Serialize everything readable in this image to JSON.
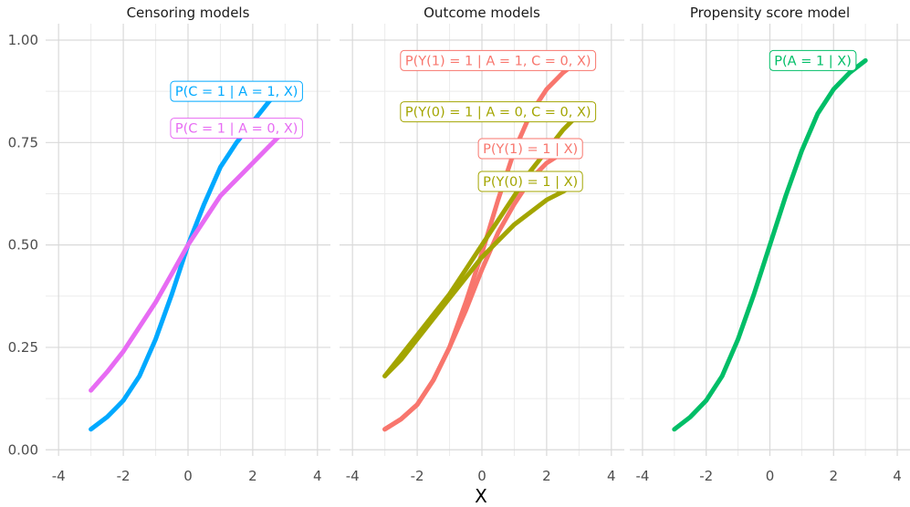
{
  "chart_data": {
    "type": "line",
    "xlabel": "X",
    "ylabel": "",
    "xlim": [
      -4.4,
      4.4
    ],
    "ylim": [
      -0.015,
      1.04
    ],
    "x_ticks": [
      "-4",
      "-2",
      "0",
      "2",
      "4"
    ],
    "x_tick_values": [
      -4,
      -2,
      0,
      2,
      4
    ],
    "y_ticks": [
      "0.00",
      "0.25",
      "0.50",
      "0.75",
      "1.00"
    ],
    "y_tick_values": [
      0,
      0.25,
      0.5,
      0.75,
      1.0
    ],
    "grid": true,
    "legend": "none",
    "panels": [
      {
        "title": "Censoring models",
        "series": [
          {
            "name": "P(C = 1 | A = 1, X)",
            "color": "#00a9ff",
            "x": [
              -3,
              -2.5,
              -2,
              -1.5,
              -1,
              -0.5,
              0,
              0.5,
              1,
              1.5,
              2,
              2.5,
              3
            ],
            "y": [
              0.05,
              0.08,
              0.12,
              0.18,
              0.27,
              0.38,
              0.5,
              0.6,
              0.69,
              0.75,
              0.8,
              0.85,
              0.89
            ],
            "label_at": [
              1.5,
              0.875
            ]
          },
          {
            "name": "P(C = 1 | A = 0, X)",
            "color": "#e76bf3",
            "x": [
              -3,
              -2.5,
              -2,
              -1.5,
              -1,
              -0.5,
              0,
              0.5,
              1,
              1.5,
              2,
              2.5,
              3
            ],
            "y": [
              0.145,
              0.19,
              0.24,
              0.3,
              0.36,
              0.43,
              0.5,
              0.56,
              0.62,
              0.66,
              0.7,
              0.74,
              0.78
            ],
            "label_at": [
              1.5,
              0.785
            ]
          }
        ]
      },
      {
        "title": "Outcome models",
        "series": [
          {
            "name": "P(Y(1) = 1 | A = 1, C = 0, X)",
            "color": "#f8766d",
            "x": [
              -3,
              -2.5,
              -2,
              -1.5,
              -1,
              -0.5,
              0,
              0.5,
              1,
              1.5,
              2,
              2.5,
              3
            ],
            "y": [
              0.05,
              0.075,
              0.11,
              0.17,
              0.25,
              0.36,
              0.48,
              0.61,
              0.73,
              0.82,
              0.88,
              0.92,
              0.95
            ],
            "label_at": [
              0.5,
              0.95
            ]
          },
          {
            "name": "P(Y(0) = 1 | A = 0, C = 0, X)",
            "color": "#a3a500",
            "x": [
              -3,
              -2.5,
              -2,
              -1.5,
              -1,
              -0.5,
              0,
              0.5,
              1,
              1.5,
              2,
              2.5,
              3
            ],
            "y": [
              0.18,
              0.23,
              0.28,
              0.33,
              0.38,
              0.44,
              0.5,
              0.56,
              0.62,
              0.68,
              0.73,
              0.78,
              0.82
            ],
            "label_at": [
              0.5,
              0.825
            ]
          },
          {
            "name": "P(Y(1) = 1 | X)",
            "color": "#f8766d",
            "x": [
              -3,
              -2.5,
              -2,
              -1.5,
              -1,
              -0.5,
              0,
              0.5,
              1,
              1.5,
              2,
              2.5,
              3
            ],
            "y": [
              0.05,
              0.075,
              0.11,
              0.17,
              0.25,
              0.34,
              0.44,
              0.53,
              0.6,
              0.66,
              0.7,
              0.725,
              0.74
            ],
            "label_at": [
              1.5,
              0.735
            ]
          },
          {
            "name": "P(Y(0) = 1 | X)",
            "color": "#a3a500",
            "x": [
              -3,
              -2.5,
              -2,
              -1.5,
              -1,
              -0.5,
              0,
              0.5,
              1,
              1.5,
              2,
              2.5,
              3
            ],
            "y": [
              0.18,
              0.22,
              0.27,
              0.32,
              0.37,
              0.42,
              0.47,
              0.51,
              0.55,
              0.58,
              0.61,
              0.63,
              0.655
            ],
            "label_at": [
              1.5,
              0.655
            ]
          }
        ]
      },
      {
        "title": "Propensity score model",
        "series": [
          {
            "name": "P(A = 1 | X)",
            "color": "#00be67",
            "x": [
              -3,
              -2.5,
              -2,
              -1.5,
              -1,
              -0.5,
              0,
              0.5,
              1,
              1.5,
              2,
              2.5,
              3
            ],
            "y": [
              0.05,
              0.08,
              0.12,
              0.18,
              0.27,
              0.38,
              0.5,
              0.62,
              0.73,
              0.82,
              0.88,
              0.92,
              0.95
            ],
            "label_at": [
              1.35,
              0.95
            ]
          }
        ]
      }
    ]
  }
}
